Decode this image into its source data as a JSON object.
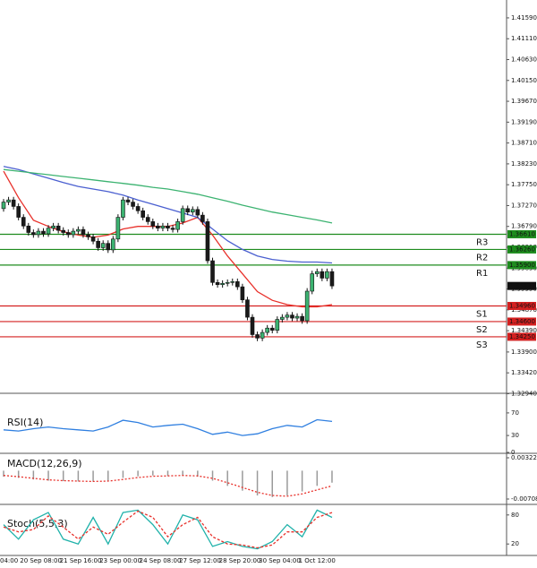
{
  "chart_data": [
    {
      "type": "candlestick",
      "categories": [
        "04:00",
        null,
        null,
        null,
        "20 Sep 08:00",
        null,
        null,
        null,
        null,
        null,
        null,
        null,
        "21 Sep 16:00",
        null,
        null,
        null,
        null,
        null,
        null,
        null,
        "23 Sep 00:00",
        null,
        null,
        null,
        null,
        null,
        null,
        null,
        "24 Sep 08:00",
        null,
        null,
        null,
        null,
        null,
        null,
        null,
        "27 Sep 12:00",
        null,
        null,
        null,
        null,
        null,
        null,
        null,
        "28 Sep 20:00",
        null,
        null,
        null,
        null,
        null,
        null,
        null,
        "30 Sep 04:00",
        null,
        null,
        null,
        null,
        null,
        null,
        null,
        "1 Oct 12:00",
        null,
        null,
        null,
        null,
        null,
        null
      ],
      "open": [
        1.372,
        1.3735,
        1.374,
        1.3725,
        1.37,
        1.368,
        1.3665,
        1.366,
        1.3668,
        1.3662,
        1.3675,
        1.368,
        1.367,
        1.3665,
        1.366,
        1.3668,
        1.3672,
        1.366,
        1.3655,
        1.3645,
        1.363,
        1.364,
        1.3625,
        1.365,
        1.37,
        1.374,
        1.3735,
        1.3725,
        1.3715,
        1.37,
        1.369,
        1.368,
        1.3675,
        1.368,
        1.3675,
        1.3672,
        1.369,
        1.372,
        1.3712,
        1.3718,
        1.3705,
        1.369,
        1.36,
        1.355,
        1.3545,
        1.3548,
        1.355,
        1.3552,
        1.354,
        1.351,
        1.347,
        1.343,
        1.3422,
        1.3435,
        1.3445,
        1.344,
        1.3465,
        1.347,
        1.3475,
        1.3468,
        1.3472,
        1.3462,
        1.353,
        1.357,
        1.3575,
        1.356,
        1.3575
      ],
      "high": [
        1.3742,
        1.3747,
        1.3747,
        1.3732,
        1.3707,
        1.3687,
        1.3672,
        1.3675,
        1.3675,
        1.3682,
        1.3687,
        1.3687,
        1.3677,
        1.3672,
        1.3675,
        1.3679,
        1.3679,
        1.3667,
        1.3662,
        1.3652,
        1.3647,
        1.3647,
        1.3657,
        1.3707,
        1.3747,
        1.3747,
        1.3742,
        1.3732,
        1.3722,
        1.3707,
        1.3697,
        1.3687,
        1.3687,
        1.3687,
        1.3682,
        1.3697,
        1.3727,
        1.3727,
        1.3725,
        1.3725,
        1.3712,
        1.3697,
        1.3607,
        1.3557,
        1.3555,
        1.3557,
        1.3559,
        1.3559,
        1.3547,
        1.3517,
        1.3477,
        1.3437,
        1.3442,
        1.3452,
        1.3452,
        1.3472,
        1.3477,
        1.3482,
        1.3482,
        1.3479,
        1.3479,
        1.3537,
        1.3577,
        1.3582,
        1.3582,
        1.3582,
        1.3582
      ],
      "low": [
        1.3713,
        1.3728,
        1.3718,
        1.3693,
        1.3673,
        1.3658,
        1.3653,
        1.3653,
        1.3655,
        1.3655,
        1.3668,
        1.3663,
        1.3658,
        1.3653,
        1.3653,
        1.3661,
        1.3653,
        1.3648,
        1.3638,
        1.3623,
        1.3623,
        1.3618,
        1.3618,
        1.3643,
        1.3693,
        1.3728,
        1.3718,
        1.3708,
        1.3693,
        1.3683,
        1.3673,
        1.3668,
        1.3668,
        1.3668,
        1.3665,
        1.3665,
        1.3683,
        1.3705,
        1.3705,
        1.3698,
        1.3683,
        1.3593,
        1.3543,
        1.3538,
        1.3538,
        1.3541,
        1.3543,
        1.3533,
        1.3503,
        1.3463,
        1.3423,
        1.3415,
        1.3415,
        1.3428,
        1.3433,
        1.3433,
        1.3458,
        1.3463,
        1.3461,
        1.3461,
        1.3455,
        1.3455,
        1.3523,
        1.3563,
        1.3553,
        1.3553,
        1.3535
      ],
      "close": [
        1.3735,
        1.374,
        1.3725,
        1.37,
        1.368,
        1.3665,
        1.366,
        1.3668,
        1.3662,
        1.3675,
        1.368,
        1.367,
        1.3665,
        1.366,
        1.3668,
        1.3672,
        1.366,
        1.3655,
        1.3645,
        1.363,
        1.364,
        1.3625,
        1.365,
        1.37,
        1.374,
        1.3735,
        1.3725,
        1.3715,
        1.37,
        1.369,
        1.368,
        1.3675,
        1.368,
        1.3675,
        1.3672,
        1.369,
        1.372,
        1.3712,
        1.3718,
        1.3705,
        1.369,
        1.36,
        1.355,
        1.3545,
        1.3548,
        1.355,
        1.3552,
        1.354,
        1.351,
        1.347,
        1.343,
        1.3422,
        1.3435,
        1.3445,
        1.344,
        1.3465,
        1.347,
        1.3475,
        1.3468,
        1.3472,
        1.3462,
        1.353,
        1.357,
        1.3575,
        1.356,
        1.3575,
        1.3542
      ],
      "up_color": "#3cb371",
      "down_color": "#1a1a1a",
      "series": [
        {
          "color": "#e8302a",
          "x": [
            0,
            3,
            6,
            9,
            12,
            15,
            18,
            21,
            24,
            27,
            30,
            33,
            36,
            39,
            42,
            45,
            48,
            51,
            54,
            57,
            60,
            63,
            66
          ],
          "values": [
            1.3806,
            1.3745,
            1.3693,
            1.3679,
            1.3667,
            1.3659,
            1.3654,
            1.3659,
            1.3673,
            1.3679,
            1.3679,
            1.3679,
            1.3687,
            1.37,
            1.3659,
            1.3611,
            1.357,
            1.3529,
            1.3509,
            1.3499,
            1.3494,
            1.3494,
            1.3499
          ]
        },
        {
          "color": "#4a5fd0",
          "x": [
            0,
            3,
            6,
            9,
            12,
            15,
            18,
            21,
            24,
            27,
            30,
            33,
            36,
            39,
            42,
            45,
            48,
            51,
            54,
            57,
            60,
            63,
            66
          ],
          "values": [
            1.3817,
            1.381,
            1.38,
            1.379,
            1.378,
            1.3771,
            1.3765,
            1.3759,
            1.3751,
            1.374,
            1.373,
            1.372,
            1.371,
            1.37,
            1.3673,
            1.3646,
            1.3626,
            1.3611,
            1.3603,
            1.3599,
            1.3597,
            1.3597,
            1.3595
          ]
        },
        {
          "color": "#3cb371",
          "x": [
            0,
            3,
            6,
            9,
            12,
            15,
            18,
            21,
            24,
            27,
            30,
            33,
            36,
            39,
            42,
            45,
            48,
            51,
            54,
            57,
            60,
            63,
            66
          ],
          "values": [
            1.381,
            1.3806,
            1.3802,
            1.3798,
            1.3794,
            1.379,
            1.3786,
            1.3782,
            1.3778,
            1.3774,
            1.3769,
            1.3765,
            1.3759,
            1.3753,
            1.3745,
            1.3737,
            1.3728,
            1.372,
            1.3712,
            1.3706,
            1.37,
            1.3694,
            1.3687
          ]
        }
      ],
      "levels": {
        "names": [
          "R3",
          "R2",
          "R1",
          "S1",
          "S2",
          "S3"
        ],
        "values": [
          1.3661,
          1.3626,
          1.359,
          1.3496,
          1.346,
          1.3425
        ],
        "value_labels": [
          "1.36610",
          "1.36260",
          "1.35900",
          "1.34960",
          "1.34600",
          "1.34250"
        ],
        "colors": [
          "#1e8c1e",
          "#1e8c1e",
          "#1e8c1e",
          "#d42020",
          "#d42020",
          "#d42020"
        ]
      },
      "last": {
        "value": 1.3542,
        "value_label": "1.35420"
      },
      "ylim": [
        1.3297,
        1.4196
      ],
      "yticks": [
        {
          "value": 1.4159,
          "label": "1.41590"
        },
        {
          "value": 1.4111,
          "label": "1.41110"
        },
        {
          "value": 1.4063,
          "label": "1.40630"
        },
        {
          "value": 1.4015,
          "label": "1.40150"
        },
        {
          "value": 1.3967,
          "label": "1.39670"
        },
        {
          "value": 1.3919,
          "label": "1.39190"
        },
        {
          "value": 1.3871,
          "label": "1.38710"
        },
        {
          "value": 1.3823,
          "label": "1.38230"
        },
        {
          "value": 1.3775,
          "label": "1.37750"
        },
        {
          "value": 1.3727,
          "label": "1.37270"
        },
        {
          "value": 1.3679,
          "label": "1.36790"
        },
        {
          "value": 1.3631,
          "label": "1.36310"
        },
        {
          "value": 1.3583,
          "label": "1.35830"
        },
        {
          "value": 1.3535,
          "label": "1.35350"
        },
        {
          "value": 1.3487,
          "label": "1.34870"
        },
        {
          "value": 1.3439,
          "label": "1.34390"
        },
        {
          "value": 1.339,
          "label": "1.33900"
        },
        {
          "value": 1.3342,
          "label": "1.33420"
        },
        {
          "value": 1.3294,
          "label": "1.32940"
        }
      ]
    },
    {
      "type": "line",
      "title": "RSI(14)",
      "x": [
        0,
        3,
        6,
        9,
        12,
        15,
        18,
        21,
        24,
        27,
        30,
        33,
        36,
        39,
        42,
        45,
        48,
        51,
        54,
        57,
        60,
        63,
        66
      ],
      "series": [
        {
          "color": "#2f7fe0",
          "values": [
            40,
            38,
            42,
            45,
            42,
            40,
            38,
            45,
            57,
            53,
            45,
            48,
            50,
            42,
            32,
            36,
            30,
            33,
            42,
            48,
            45,
            58,
            55
          ]
        }
      ],
      "ylim": [
        0,
        100
      ],
      "yticks": [
        70,
        30,
        0
      ]
    },
    {
      "type": "macd",
      "title": "MACD(12,26,9)",
      "x": [
        0,
        3,
        6,
        9,
        12,
        15,
        18,
        21,
        24,
        27,
        30,
        33,
        36,
        39,
        42,
        45,
        48,
        51,
        54,
        57,
        60,
        63,
        66
      ],
      "histogram": {
        "color": "#9a9a9a",
        "values": [
          -0.0015,
          -0.0018,
          -0.0022,
          -0.0025,
          -0.0026,
          -0.0027,
          -0.0027,
          -0.0025,
          -0.0018,
          -0.0014,
          -0.0012,
          -0.0013,
          -0.0012,
          -0.0015,
          -0.0025,
          -0.0038,
          -0.005,
          -0.0062,
          -0.0066,
          -0.0062,
          -0.0052,
          -0.0038,
          -0.003
        ]
      },
      "signal": {
        "color": "#e8302a",
        "values": [
          -0.0012,
          -0.0015,
          -0.0019,
          -0.0023,
          -0.0025,
          -0.0026,
          -0.0027,
          -0.0026,
          -0.0022,
          -0.0017,
          -0.0014,
          -0.0013,
          -0.0012,
          -0.0013,
          -0.0019,
          -0.003,
          -0.0042,
          -0.0054,
          -0.0062,
          -0.0064,
          -0.0058,
          -0.0048,
          -0.0038
        ]
      },
      "ylim": [
        -0.007088,
        0.003223
      ],
      "yticks": [
        0.003223,
        -0.007088
      ]
    },
    {
      "type": "stoch",
      "title": "Stoch(5,5,3)",
      "x": [
        0,
        3,
        6,
        9,
        12,
        15,
        18,
        21,
        24,
        27,
        30,
        33,
        36,
        39,
        42,
        45,
        48,
        51,
        54,
        57,
        60,
        63,
        66
      ],
      "series": [
        {
          "color": "#20b2aa",
          "values": [
            60,
            30,
            70,
            85,
            30,
            20,
            75,
            20,
            85,
            90,
            60,
            20,
            80,
            70,
            15,
            25,
            15,
            10,
            25,
            60,
            35,
            90,
            75
          ]
        },
        {
          "color": "#e8302a",
          "dashed": true,
          "values": [
            55,
            45,
            50,
            78,
            55,
            30,
            55,
            40,
            65,
            88,
            75,
            35,
            60,
            75,
            35,
            20,
            18,
            12,
            18,
            45,
            45,
            75,
            85
          ]
        }
      ],
      "ylim": [
        0,
        100
      ],
      "yticks": [
        80,
        20
      ]
    }
  ]
}
